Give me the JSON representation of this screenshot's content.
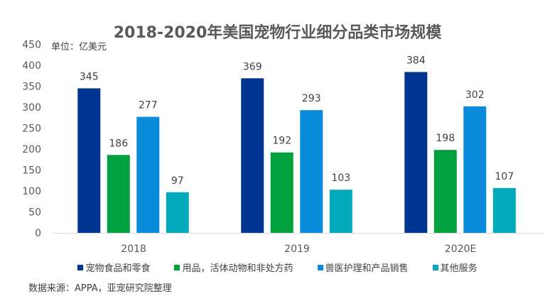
{
  "chart_data": {
    "type": "bar",
    "title": "2018-2020年美国宠物行业细分品类市场规模",
    "unit_label": "单位：亿美元",
    "categories": [
      "2018",
      "2019",
      "2020E"
    ],
    "series": [
      {
        "name": "宠物食品和零食",
        "color": "#003591",
        "values": [
          345,
          369,
          384
        ]
      },
      {
        "name": "用品，活体动物和非处方药",
        "color": "#00A03E",
        "values": [
          186,
          192,
          198
        ]
      },
      {
        "name": "兽医护理和产品销售",
        "color": "#0A8CDB",
        "values": [
          277,
          293,
          302
        ]
      },
      {
        "name": "其他服务",
        "color": "#00AABB",
        "values": [
          97,
          103,
          107
        ]
      }
    ],
    "ylim": [
      0,
      450
    ],
    "yticks": [
      0,
      50,
      100,
      150,
      200,
      250,
      300,
      350,
      400,
      450
    ],
    "grid": false,
    "legend": "bottom",
    "source": "数据来源：APPA，亚宠研究院整理"
  }
}
